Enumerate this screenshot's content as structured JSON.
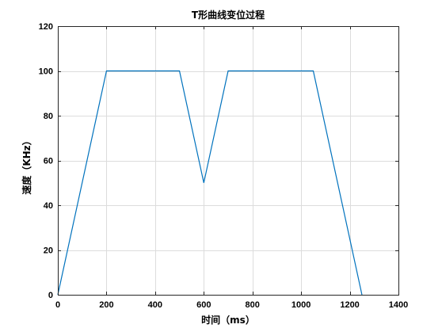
{
  "chart_data": {
    "type": "line",
    "title": "T形曲线变位过程",
    "xlabel": "时间（ms）",
    "ylabel": "速度（KHz）",
    "xlim": [
      0,
      1400
    ],
    "ylim": [
      0,
      120
    ],
    "xticks": [
      0,
      200,
      400,
      600,
      800,
      1000,
      1200,
      1400
    ],
    "yticks": [
      0,
      20,
      40,
      60,
      80,
      100,
      120
    ],
    "grid": true,
    "series": [
      {
        "color": "#0072BD",
        "x": [
          0,
          200,
          500,
          600,
          700,
          1050,
          1250
        ],
        "y": [
          0,
          100,
          100,
          50,
          100,
          100,
          0
        ]
      }
    ]
  }
}
